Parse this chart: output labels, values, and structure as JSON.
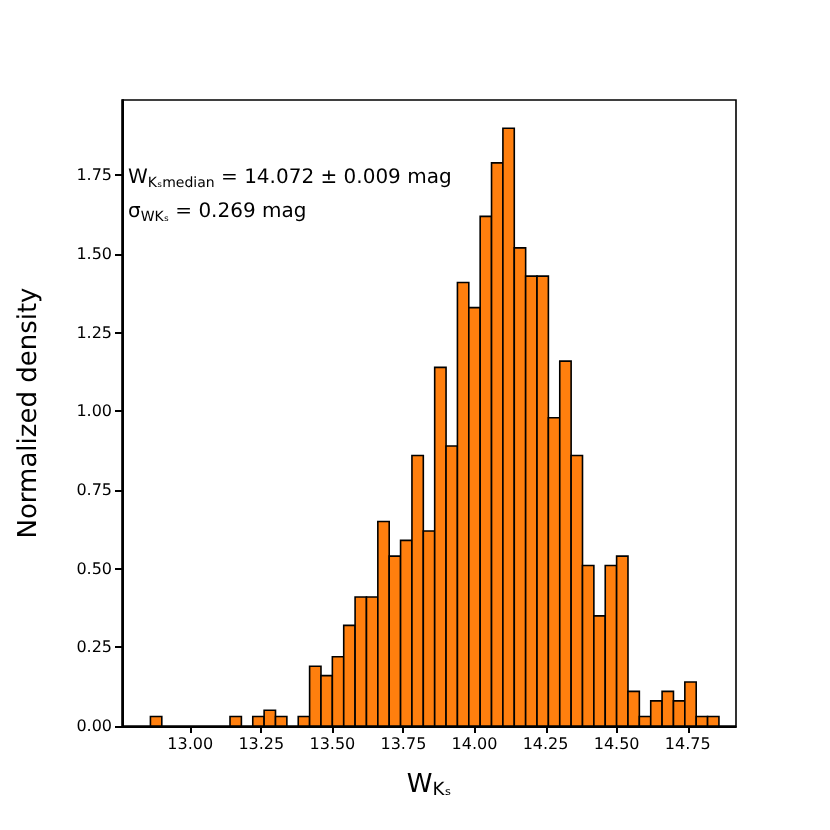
{
  "chart_data": {
    "type": "histogram",
    "xlabel": "W$_{Kₛ}$",
    "ylabel": "Normalized density",
    "annotations": [
      "W$_{Kₛmedian}$ = 14.072 ± 0.009 mag",
      "σ$_{WKₛ}$ = 0.269 mag"
    ],
    "bins": [
      12.86,
      12.9,
      12.94,
      12.98,
      13.02,
      13.06,
      13.1,
      13.14,
      13.18,
      13.22,
      13.26,
      13.3,
      13.34,
      13.38,
      13.42,
      13.46,
      13.5,
      13.54,
      13.58,
      13.62,
      13.66,
      13.7,
      13.74,
      13.78,
      13.82,
      13.86,
      13.9,
      13.94,
      13.98,
      14.02,
      14.06,
      14.1,
      14.14,
      14.18,
      14.22,
      14.26,
      14.3,
      14.34,
      14.38,
      14.42,
      14.46,
      14.5,
      14.54,
      14.58,
      14.62,
      14.66,
      14.7,
      14.74,
      14.78,
      14.82,
      14.86
    ],
    "values": [
      0.03,
      0,
      0,
      0,
      0,
      0,
      0,
      0.03,
      0,
      0.03,
      0.05,
      0.03,
      0,
      0.03,
      0.19,
      0.16,
      0.22,
      0.32,
      0.41,
      0.41,
      0.65,
      0.54,
      0.59,
      0.86,
      0.62,
      1.14,
      0.89,
      1.41,
      1.33,
      1.62,
      1.79,
      1.9,
      1.52,
      1.43,
      1.43,
      0.98,
      1.16,
      0.86,
      0.51,
      0.35,
      0.51,
      0.54,
      0.11,
      0.03,
      0.08,
      0.11,
      0.08,
      0.14,
      0.03,
      0.03
    ],
    "color": "#ff7f0e",
    "xlim": [
      12.76,
      14.92
    ],
    "ylim": [
      0,
      1.99
    ],
    "xticks": [
      {
        "value": 13,
        "label": "13.00"
      },
      {
        "value": 13.25,
        "label": "13.25"
      },
      {
        "value": 13.5,
        "label": "13.50"
      },
      {
        "value": 13.75,
        "label": "13.75"
      },
      {
        "value": 14,
        "label": "14.00"
      },
      {
        "value": 14.25,
        "label": "14.25"
      },
      {
        "value": 14.5,
        "label": "14.50"
      },
      {
        "value": 14.75,
        "label": "14.75"
      }
    ],
    "yticks": [
      {
        "value": 0,
        "label": "0.00"
      },
      {
        "value": 0.25,
        "label": "0.25"
      },
      {
        "value": 0.5,
        "label": "0.50"
      },
      {
        "value": 0.75,
        "label": "0.75"
      },
      {
        "value": 1,
        "label": "1.00"
      },
      {
        "value": 1.25,
        "label": "1.25"
      },
      {
        "value": 1.5,
        "label": "1.50"
      },
      {
        "value": 1.75,
        "label": "1.75"
      }
    ],
    "grid": false
  }
}
